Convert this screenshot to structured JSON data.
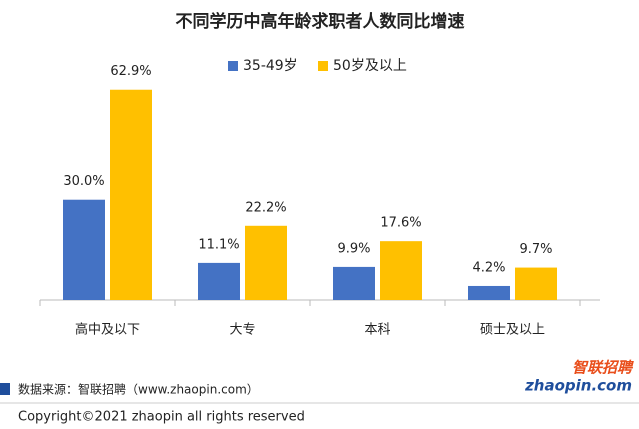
{
  "chart_data": {
    "type": "bar",
    "title": "不同学历中高年龄求职者人数同比增速",
    "categories": [
      "高中及以下",
      "大专",
      "本科",
      "硕士及以上"
    ],
    "series": [
      {
        "name": "35-49岁",
        "color": "#4472c4",
        "values": [
          30.0,
          11.1,
          9.9,
          4.2
        ],
        "value_labels": [
          "30.0%",
          "11.1%",
          "9.9%",
          "4.2%"
        ]
      },
      {
        "name": "50岁及以上",
        "color": "#ffc000",
        "values": [
          62.9,
          22.2,
          17.6,
          9.7
        ],
        "value_labels": [
          "62.9%",
          "22.2%",
          "17.6%",
          "9.7%"
        ]
      }
    ],
    "ylim": [
      0,
      70
    ],
    "legend": "top"
  },
  "footer": {
    "source": "数据来源：智联招聘（www.zhaopin.com）",
    "copyright": "Copyright©2021  zhaopin all rights reserved",
    "logo": {
      "name": "智联招聘",
      "site": "zhaopin.com"
    }
  }
}
